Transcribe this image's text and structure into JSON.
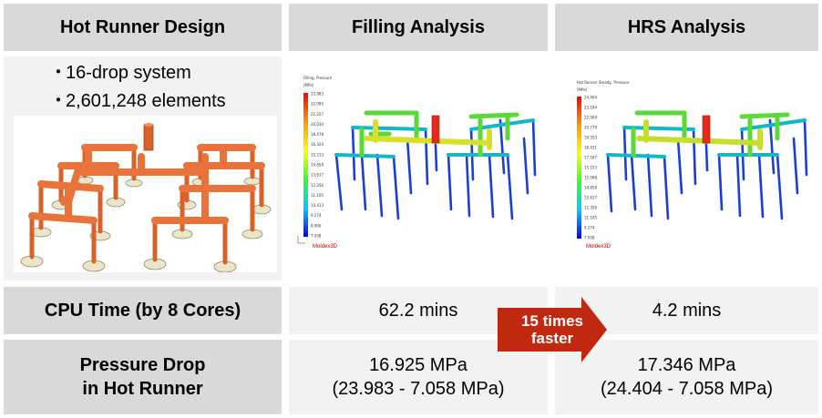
{
  "headers": {
    "design": "Hot Runner Design",
    "filling": "Filling Analysis",
    "hrs": "HRS Analysis"
  },
  "design": {
    "bullets": [
      "16-drop system",
      "2,601,248 elements"
    ]
  },
  "filling_plot": {
    "title": "Filling, Pressure",
    "unit": "[MPa]",
    "scale": [
      "23.983",
      "22.095",
      "21.227",
      "20.030",
      "18.478",
      "16.324",
      "15.213",
      "14.858",
      "13.617",
      "12.356",
      "11.105",
      "10.413",
      "9.274",
      "8.900",
      "7.058"
    ],
    "brand": "Moldex3D"
  },
  "hrs_plot": {
    "title": "Hot Runner Steady, Pressure",
    "unit": "[MPa]",
    "scale": [
      "24.404",
      "23.184",
      "22.004",
      "20.779",
      "19.553",
      "18.431",
      "17.167",
      "15.153",
      "15.068",
      "14.858",
      "13.617",
      "12.356",
      "11.105",
      "9.274",
      "7.058"
    ],
    "brand": "Moldex3D"
  },
  "rows": {
    "cpu": {
      "label": "CPU Time (by 8 Cores)",
      "filling": "62.2 mins",
      "hrs": "4.2 mins"
    },
    "pressure": {
      "label_line1": "Pressure Drop",
      "label_line2": "in Hot Runner",
      "filling_line1": "16.925 MPa",
      "filling_line2": "(23.983 - 7.058 MPa)",
      "hrs_line1": "17.346 MPa",
      "hrs_line2": "(24.404 - 7.058 MPa)"
    }
  },
  "callout": {
    "line1": "15 times",
    "line2": "faster"
  },
  "colors": {
    "header_bg": "#d9d9d9",
    "cell_bg": "#f2f2f2",
    "runner_orange": "#e8743b",
    "arrow_red": "#c0280f"
  }
}
